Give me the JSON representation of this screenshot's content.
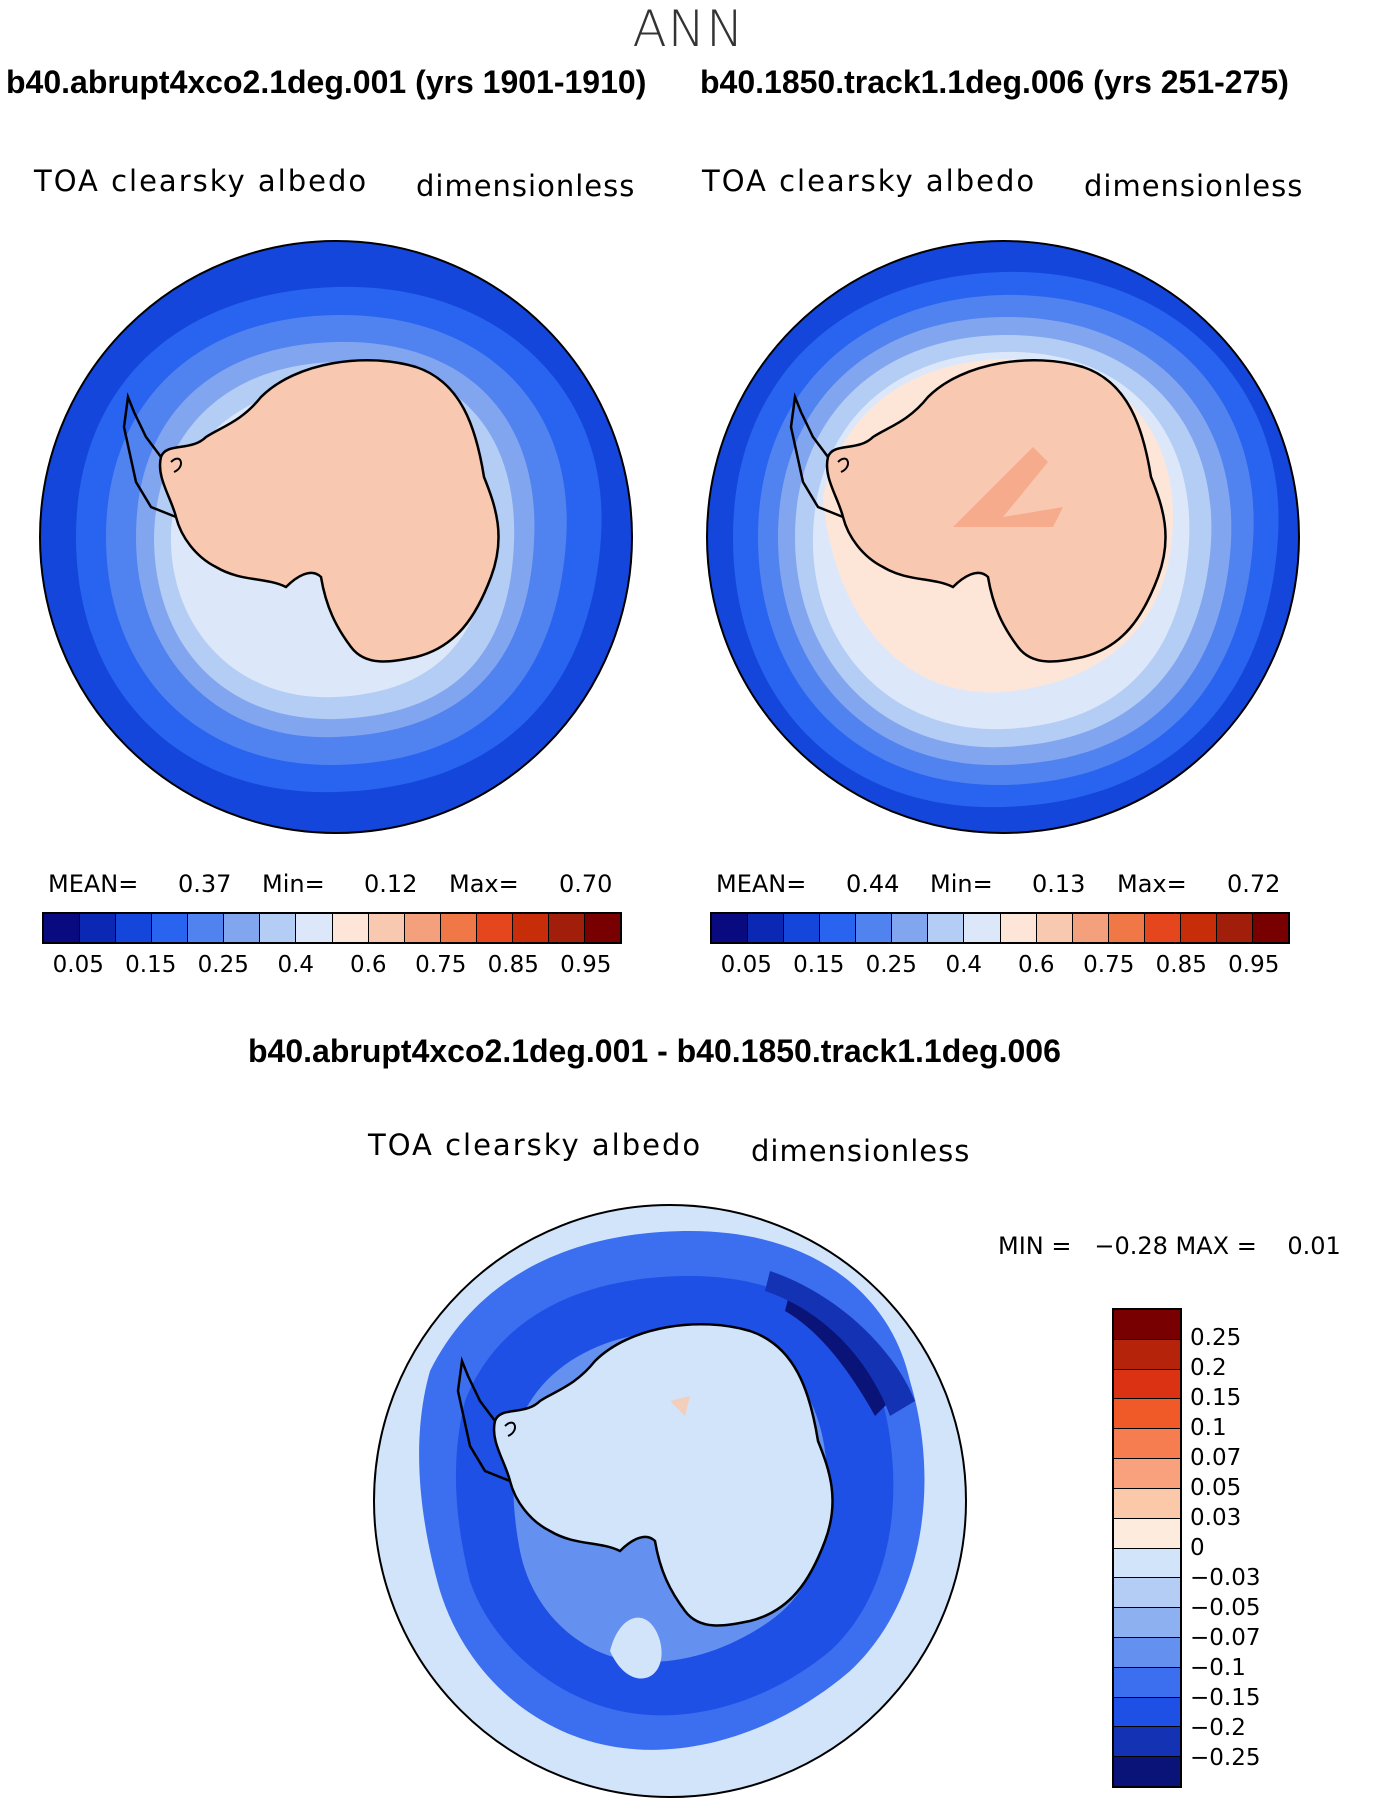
{
  "season": "ANN",
  "panels": [
    {
      "title": "b40.abrupt4xco2.1deg.001 (yrs 1901-1910)",
      "variable": "TOA clearsky albedo",
      "units": "dimensionless",
      "mean_label": "MEAN=",
      "mean_value": "0.37",
      "min_label": "Min=",
      "min_value": "0.12",
      "max_label": "Max=",
      "max_value": "0.70"
    },
    {
      "title": "b40.1850.track1.1deg.006 (yrs 251-275)",
      "variable": "TOA clearsky albedo",
      "units": "dimensionless",
      "mean_label": "MEAN=",
      "mean_value": "0.44",
      "min_label": "Min=",
      "min_value": "0.13",
      "max_label": "Max=",
      "max_value": "0.72"
    }
  ],
  "difference": {
    "title": "b40.abrupt4xco2.1deg.001 - b40.1850.track1.1deg.006",
    "variable": "TOA clearsky albedo",
    "units": "dimensionless",
    "minmax_text": "MIN =   −0.28 MAX =    0.01"
  },
  "colorbar_abs": {
    "colors": [
      "#0a0a80",
      "#0a28b4",
      "#1446dc",
      "#2864f0",
      "#5082f0",
      "#82a5f0",
      "#b4cdf5",
      "#dce8fa",
      "#fde6d8",
      "#f9c8b0",
      "#f5a07d",
      "#f07846",
      "#e6461e",
      "#c82d0a",
      "#a01e0a",
      "#780000"
    ],
    "ticks": [
      "0.05",
      "0.15",
      "0.25",
      "0.4",
      "0.6",
      "0.75",
      "0.85",
      "0.95"
    ]
  },
  "colorbar_diff": {
    "colors": [
      "#780000",
      "#b4230a",
      "#dc3214",
      "#f05a28",
      "#f57d50",
      "#f9a07d",
      "#fbc8aa",
      "#fdebde",
      "#d2e4fa",
      "#b4cdf5",
      "#8cb0f0",
      "#6490f0",
      "#3c6ef0",
      "#1e50e6",
      "#1432b4",
      "#0a1478"
    ],
    "ticks": [
      "0.25",
      "0.2",
      "0.15",
      "0.1",
      "0.07",
      "0.05",
      "0.03",
      "0",
      "−0.03",
      "−0.05",
      "−0.07",
      "−0.1",
      "−0.15",
      "−0.2",
      "−0.25"
    ]
  },
  "map_colors": {
    "ocean_deep": "#1446dc",
    "ocean_mid": "#2864f0",
    "ocean_light": "#5082f0",
    "ocean_pale": "#82a5f0",
    "ocean_pale2": "#b4cdf5",
    "ice_edge": "#dce8fa",
    "land": "#f9c8b0",
    "land_light": "#fde6d8",
    "diff_bg": "#d2e4fa",
    "diff_dark": "#0a1478"
  }
}
